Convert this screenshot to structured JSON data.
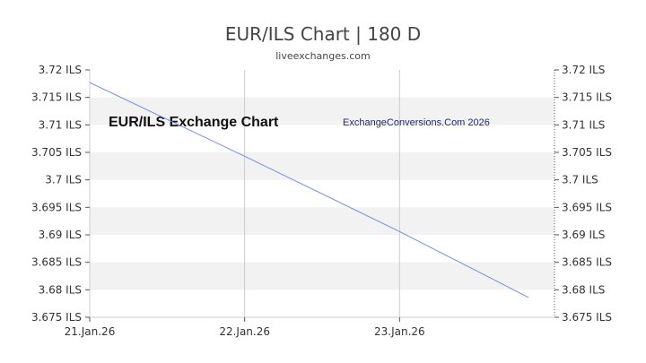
{
  "header": {
    "title": "EUR/ILS Chart | 180 D",
    "subtitle": "liveexchanges.com"
  },
  "watermarks": {
    "left": "EUR/ILS Exchange Chart",
    "right": "ExchangeConversions.Com 2026"
  },
  "colors": {
    "line": "#6f8fe0",
    "band": "#f2f2f2",
    "grid": "#cccccc"
  },
  "chart_data": {
    "type": "line",
    "title": "EUR/ILS Chart | 180 D",
    "xlabel": "",
    "ylabel": "",
    "x_ticks": [
      "21.Jan.26",
      "22.Jan.26",
      "23.Jan.26"
    ],
    "y_ticks": [
      "3.72 ILS",
      "3.715 ILS",
      "3.71 ILS",
      "3.705 ILS",
      "3.7 ILS",
      "3.695 ILS",
      "3.69 ILS",
      "3.685 ILS",
      "3.68 ILS",
      "3.675 ILS"
    ],
    "xlim": [
      "21.Jan.26",
      "24.Jan.26"
    ],
    "ylim": [
      3.675,
      3.72
    ],
    "grid": true,
    "series": [
      {
        "name": "",
        "x": [
          "21.Jan.26",
          "22.Jan.26",
          "23.Jan.26",
          "23.Jan.26 20:00"
        ],
        "values": [
          3.7177,
          3.7043,
          3.6906,
          3.6786
        ]
      }
    ]
  }
}
